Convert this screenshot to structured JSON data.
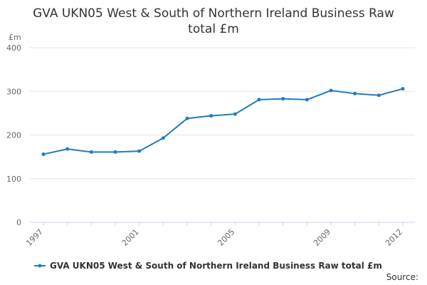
{
  "title_line1": "GVA UKN05 West & South of Northern Ireland Business Raw",
  "title_line2": "total £m",
  "unit_label": "£m",
  "source_label": "Source:",
  "colors": {
    "series": "#1f7dbf",
    "grid": "#e6e6e6",
    "axis": "#ccd6eb",
    "text": "#333333",
    "tick_text": "#666666"
  },
  "chart_data": {
    "type": "line",
    "title": "GVA UKN05 West & South of Northern Ireland Business Raw total £m",
    "ylabel": "£m",
    "ylim": [
      0,
      400
    ],
    "yticks": [
      0,
      100,
      200,
      300,
      400
    ],
    "xticks": [
      "1997",
      "2001",
      "2005",
      "2009",
      "2012"
    ],
    "grid": true,
    "legend_position": "bottom",
    "x": [
      1997,
      1998,
      1999,
      2000,
      2001,
      2002,
      2003,
      2004,
      2005,
      2006,
      2007,
      2008,
      2009,
      2010,
      2011,
      2012
    ],
    "series": [
      {
        "name": "GVA UKN05 West & South of Northern Ireland Business Raw total £m",
        "color": "#1f7dbf",
        "values": [
          156,
          168,
          161,
          161,
          163,
          193,
          238,
          244,
          248,
          281,
          283,
          281,
          302,
          295,
          291,
          306
        ]
      }
    ]
  }
}
